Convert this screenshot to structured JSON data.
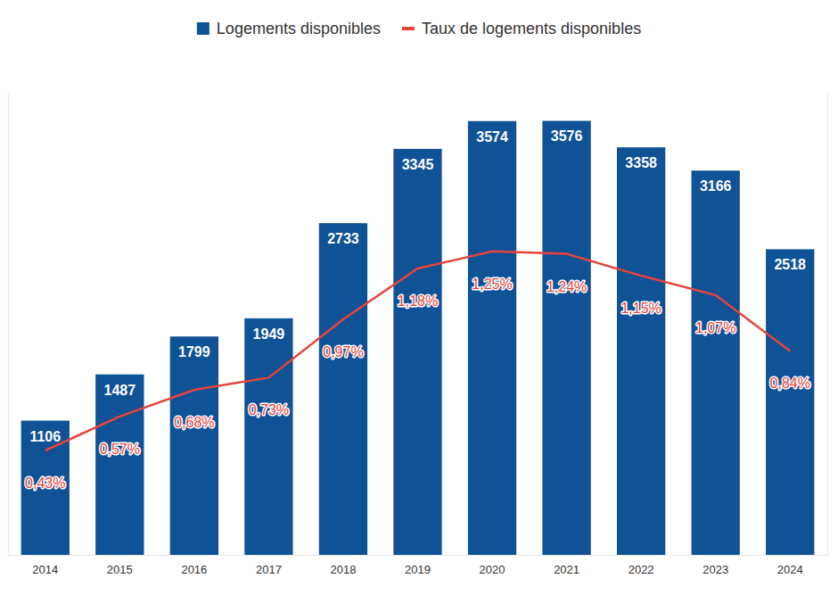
{
  "chart_data": {
    "type": "bar",
    "categories": [
      "2014",
      "2015",
      "2016",
      "2017",
      "2018",
      "2019",
      "2020",
      "2021",
      "2022",
      "2023",
      "2024"
    ],
    "series": [
      {
        "name": "Logements disponibles",
        "type": "bar",
        "color": "#0f5296",
        "values": [
          1106,
          1487,
          1799,
          1949,
          2733,
          3345,
          3574,
          3576,
          3358,
          3166,
          2518
        ]
      },
      {
        "name": "Taux de logements disponibles",
        "type": "line",
        "color": "#e8433a",
        "axis": "y2",
        "values": [
          0.43,
          0.57,
          0.68,
          0.73,
          0.97,
          1.18,
          1.25,
          1.24,
          1.15,
          1.07,
          0.84
        ],
        "value_labels": [
          "0,43%",
          "0,57%",
          "0,68%",
          "0,73%",
          "0,97%",
          "1,18%",
          "1,25%",
          "1,24%",
          "1,15%",
          "1,07%",
          "0,84%"
        ]
      }
    ],
    "ylim": [
      0,
      3800
    ],
    "y2lim": [
      0,
      1.9
    ],
    "data_labels": true,
    "tick_labels": "x",
    "legend": "top",
    "grid": false
  }
}
